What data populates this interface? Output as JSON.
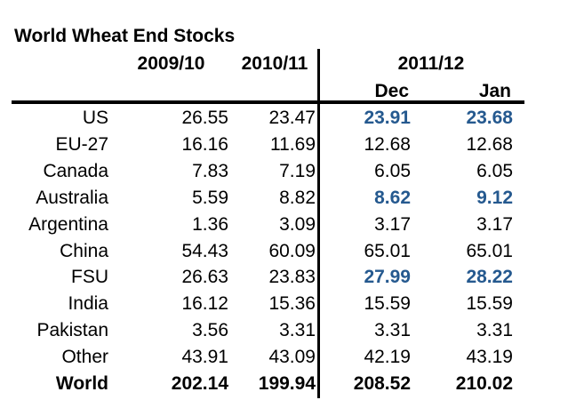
{
  "title": "World Wheat End Stocks",
  "colors": {
    "highlight_text": "#25598f",
    "normal_text": "#000000",
    "rule": "#000000",
    "background": "#ffffff"
  },
  "chart_data": {
    "type": "table",
    "title": "World Wheat End Stocks",
    "column_group_label": "2011/12",
    "columns": [
      "2009/10",
      "2010/11",
      "Dec",
      "Jan"
    ],
    "highlighted_rows": [
      "US",
      "Australia",
      "FSU"
    ],
    "total_row_label": "World",
    "rows": [
      {
        "label": "US",
        "values": [
          26.55,
          23.47,
          23.91,
          23.68
        ],
        "highlight": true
      },
      {
        "label": "EU-27",
        "values": [
          16.16,
          11.69,
          12.68,
          12.68
        ],
        "highlight": false
      },
      {
        "label": "Canada",
        "values": [
          7.83,
          7.19,
          6.05,
          6.05
        ],
        "highlight": false
      },
      {
        "label": "Australia",
        "values": [
          5.59,
          8.82,
          8.62,
          9.12
        ],
        "highlight": true
      },
      {
        "label": "Argentina",
        "values": [
          1.36,
          3.09,
          3.17,
          3.17
        ],
        "highlight": false
      },
      {
        "label": "China",
        "values": [
          54.43,
          60.09,
          65.01,
          65.01
        ],
        "highlight": false
      },
      {
        "label": "FSU",
        "values": [
          26.63,
          23.83,
          27.99,
          28.22
        ],
        "highlight": true
      },
      {
        "label": "India",
        "values": [
          16.12,
          15.36,
          15.59,
          15.59
        ],
        "highlight": false
      },
      {
        "label": "Pakistan",
        "values": [
          3.56,
          3.31,
          3.31,
          3.31
        ],
        "highlight": false
      },
      {
        "label": "Other",
        "values": [
          43.91,
          43.09,
          42.19,
          43.19
        ],
        "highlight": false
      },
      {
        "label": "World",
        "values": [
          202.14,
          199.94,
          208.52,
          210.02
        ],
        "is_total": true
      }
    ]
  }
}
